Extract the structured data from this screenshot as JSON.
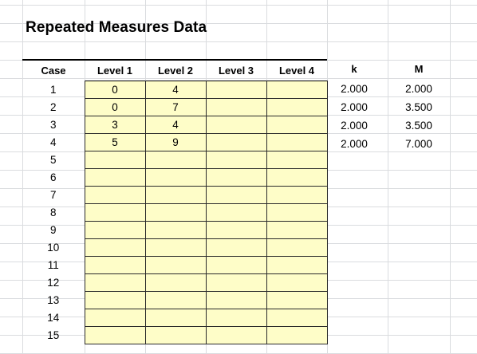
{
  "sheet": {
    "title": "Repeated Measures Data"
  },
  "table": {
    "headers": {
      "case": "Case",
      "levels": [
        "Level 1",
        "Level 2",
        "Level 3",
        "Level 4"
      ]
    },
    "rows": [
      {
        "case": "1",
        "levels": [
          "0",
          "4",
          "",
          ""
        ]
      },
      {
        "case": "2",
        "levels": [
          "0",
          "7",
          "",
          ""
        ]
      },
      {
        "case": "3",
        "levels": [
          "3",
          "4",
          "",
          ""
        ]
      },
      {
        "case": "4",
        "levels": [
          "5",
          "9",
          "",
          ""
        ]
      },
      {
        "case": "5",
        "levels": [
          "",
          "",
          "",
          ""
        ]
      },
      {
        "case": "6",
        "levels": [
          "",
          "",
          "",
          ""
        ]
      },
      {
        "case": "7",
        "levels": [
          "",
          "",
          "",
          ""
        ]
      },
      {
        "case": "8",
        "levels": [
          "",
          "",
          "",
          ""
        ]
      },
      {
        "case": "9",
        "levels": [
          "",
          "",
          "",
          ""
        ]
      },
      {
        "case": "10",
        "levels": [
          "",
          "",
          "",
          ""
        ]
      },
      {
        "case": "11",
        "levels": [
          "",
          "",
          "",
          ""
        ]
      },
      {
        "case": "12",
        "levels": [
          "",
          "",
          "",
          ""
        ]
      },
      {
        "case": "13",
        "levels": [
          "",
          "",
          "",
          ""
        ]
      },
      {
        "case": "14",
        "levels": [
          "",
          "",
          "",
          ""
        ]
      },
      {
        "case": "15",
        "levels": [
          "",
          "",
          "",
          ""
        ]
      }
    ]
  },
  "k_column": {
    "header": "k",
    "values": [
      "2.000",
      "2.000",
      "2.000",
      "2.000"
    ]
  },
  "m_column": {
    "header": "M",
    "values": [
      "2.000",
      "3.500",
      "3.500",
      "7.000"
    ]
  },
  "colors": {
    "input_fill": "#fefdc8",
    "gridline": "#dadcdf",
    "border": "#000000"
  }
}
